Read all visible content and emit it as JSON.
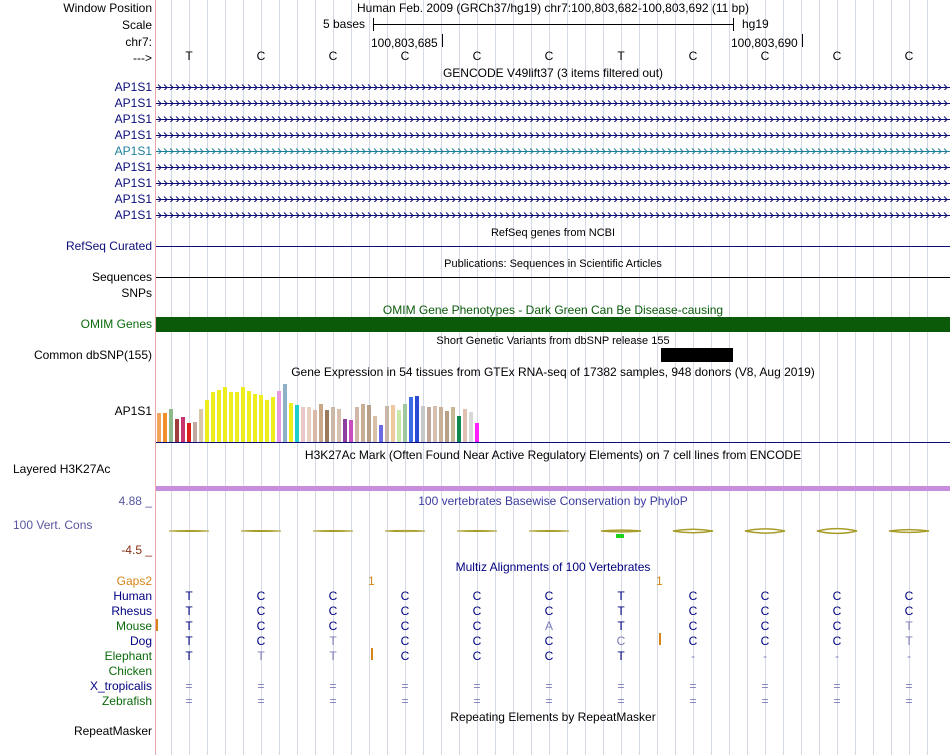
{
  "ruler": {
    "window_position_label": "Window Position",
    "scale_label": "Scale",
    "chrom_label": "chr7:",
    "strand_label": "--->",
    "assembly_text": "Human Feb. 2009 (GRCh37/hg19)   chr7:100,803,682-100,803,692 (11 bp)",
    "scale_text": "5 bases",
    "db_text": "hg19",
    "coord_left": "100,803,685",
    "coord_right": "100,803,690",
    "bases": [
      "T",
      "C",
      "C",
      "C",
      "C",
      "C",
      "T",
      "C",
      "C",
      "C",
      "C"
    ]
  },
  "gencode": {
    "title": "GENCODE V49lift37 (3 items filtered out)",
    "items": [
      "AP1S1",
      "AP1S1",
      "AP1S1",
      "AP1S1",
      "AP1S1",
      "AP1S1",
      "AP1S1",
      "AP1S1",
      "AP1S1"
    ],
    "highlight_color": "#1d7f9a",
    "color": "#0c0c78"
  },
  "refseq": {
    "label": "RefSeq Curated",
    "title": "RefSeq genes from NCBI"
  },
  "publications": {
    "label": "Sequences",
    "title": "Publications: Sequences in Scientific Articles"
  },
  "snps": {
    "label": "SNPs"
  },
  "omim": {
    "label": "OMIM Genes",
    "title": "OMIM Gene Phenotypes - Dark Green Can Be Disease-causing",
    "color": "#0a5a0a"
  },
  "dbsnp": {
    "label": "Common dbSNP(155)",
    "title": "Short Genetic Variants from dbSNP release 155"
  },
  "gtex": {
    "label": "AP1S1",
    "title": "Gene Expression in 54 tissues from GTEx RNA-seq of 17382 samples, 948 donors (V8, Aug 2019)",
    "values": [
      0.46,
      0.46,
      0.54,
      0.37,
      0.4,
      0.31,
      0.32,
      0.53,
      0.67,
      0.81,
      0.84,
      0.89,
      0.81,
      0.8,
      0.89,
      0.82,
      0.78,
      0.75,
      0.67,
      0.72,
      0.82,
      0.94,
      0.63,
      0.59,
      0.57,
      0.57,
      0.52,
      0.61,
      0.52,
      0.56,
      0.53,
      0.37,
      0.35,
      0.57,
      0.61,
      0.59,
      0.42,
      0.28,
      0.58,
      0.6,
      0.51,
      0.62,
      0.72,
      0.74,
      0.58,
      0.56,
      0.58,
      0.57,
      0.5,
      0.57,
      0.42,
      0.54,
      0.49,
      0.3
    ],
    "colors": [
      "#f2a55b",
      "#f0902b",
      "#8db88c",
      "#a03c3c",
      "#c8326e",
      "#dc1e1e",
      "#c0a8a0",
      "#d8c8a8",
      "#eeee1e",
      "#eeee1e",
      "#eeee1e",
      "#eeee1e",
      "#eeee1e",
      "#eeee1e",
      "#eeee1e",
      "#eeee1e",
      "#eeee1e",
      "#eeee1e",
      "#eeee1e",
      "#eeee1e",
      "#e69be0",
      "#8eb0c8",
      "#eeee1e",
      "#1ecece",
      "#e8c8c8",
      "#e8d0c0",
      "#d8b8a8",
      "#c8a888",
      "#9a7a5a",
      "#ccb8a8",
      "#d8c0b0",
      "#8e3ea0",
      "#c84ec0",
      "#d0b8a8",
      "#c8b098",
      "#b8a088",
      "#d8c0a8",
      "#6a6ae6",
      "#c8b8a8",
      "#f0c8a0",
      "#c8e8a8",
      "#a0c8a0",
      "#3a6ae6",
      "#2a4ad6",
      "#c8c8c8",
      "#c0a898",
      "#d8c0b0",
      "#c8b098",
      "#b8a088",
      "#c8b898",
      "#0e8a4e",
      "#e0c0b0",
      "#d8d8d8",
      "#ff1eff"
    ]
  },
  "h3k27ac": {
    "label": "Layered H3K27Ac",
    "title": "H3K27Ac Mark (Often Found Near Active Regulatory Elements) on 7 cell lines from ENCODE",
    "color": "#c88ede"
  },
  "phylop": {
    "label": "100 Vert. Cons",
    "title": "100 vertebrates Basewise Conservation by PhyloP",
    "max_label": "4.88 _",
    "min_label": "-4.5 _",
    "values": [
      0.3,
      0.25,
      0.2,
      0.4,
      0.35,
      0.3,
      0.6,
      1.2,
      1.4,
      1.6,
      0.9
    ]
  },
  "multiz": {
    "title": "Multiz Alignments of 100 Vertebrates",
    "gaps_label": "Gaps2",
    "gap_marks": [
      "1",
      "1"
    ],
    "species": [
      {
        "name": "Human",
        "color": "#000080",
        "bases": [
          "T",
          "C",
          "C",
          "C",
          "C",
          "C",
          "T",
          "C",
          "C",
          "C",
          "C"
        ]
      },
      {
        "name": "Rhesus",
        "color": "#000080",
        "bases": [
          "T",
          "C",
          "C",
          "C",
          "C",
          "C",
          "T",
          "C",
          "C",
          "C",
          "C"
        ]
      },
      {
        "name": "Mouse",
        "color": "#0b6a0b",
        "bases": [
          "T",
          "C",
          "C",
          "C",
          "C",
          "A",
          "T",
          "C",
          "C",
          "C",
          "T"
        ]
      },
      {
        "name": "Dog",
        "color": "#000080",
        "bases": [
          "T",
          "C",
          "T",
          "C",
          "C",
          "C",
          "C",
          "C",
          "C",
          "C",
          "T"
        ]
      },
      {
        "name": "Elephant",
        "color": "#0b6a0b",
        "bases": [
          "T",
          "T",
          "T",
          "C",
          "C",
          "C",
          "T",
          "-",
          "-",
          "-",
          "-"
        ]
      },
      {
        "name": "Chicken",
        "color": "#0b6a0b",
        "bases": [
          "",
          "",
          "",
          "",
          "",
          "",
          "",
          "",
          "",
          "",
          ""
        ]
      },
      {
        "name": "X_tropicalis",
        "color": "#000080",
        "bases": [
          "=",
          "=",
          "=",
          "=",
          "=",
          "=",
          "=",
          "=",
          "=",
          "=",
          "="
        ]
      },
      {
        "name": "Zebrafish",
        "color": "#0b6a0b",
        "bases": [
          "=",
          "=",
          "=",
          "=",
          "=",
          "=",
          "=",
          "=",
          "=",
          "=",
          "="
        ]
      }
    ]
  },
  "repeatmasker": {
    "label": "RepeatMasker",
    "title": "Repeating Elements by RepeatMasker"
  }
}
